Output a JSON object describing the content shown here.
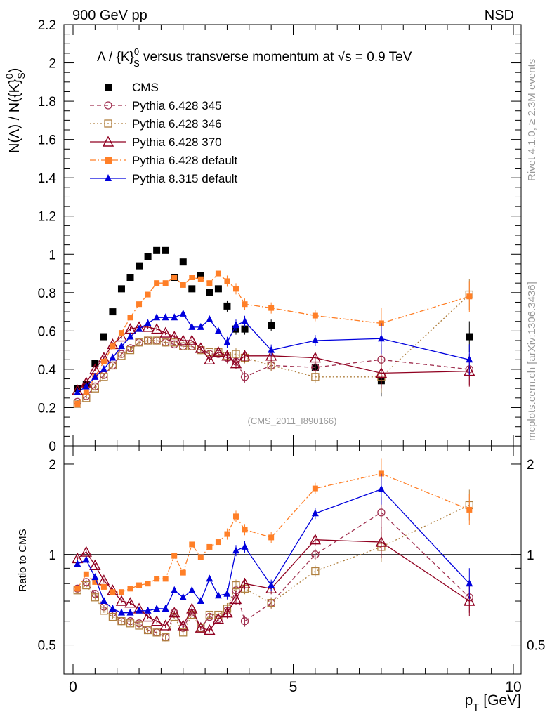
{
  "header": {
    "left": "900 GeV pp",
    "right": "NSD"
  },
  "side_labels": {
    "rivet": "Rivet 4.1.0, ≥ 2.3M events",
    "mcplots": "mcplots.cern.ch [arXiv:1306.3436]"
  },
  "chart_data": {
    "type": "scatter",
    "title": "Λ / {K}S0 versus transverse momentum at √s = 0.9 TeV",
    "title_parts": {
      "lead": "Λ / {K}",
      "sup": "0",
      "sub": "S",
      "mid": " versus transverse momentum at ",
      "sqrt": "√s",
      "tail": " = 0.9 TeV"
    },
    "ylabel": "N(Λ)  /  N({K}S0)",
    "ylabel_parts": {
      "lead": "N(Λ)  /  N({K}",
      "sup": "0",
      "sub": "S",
      "tail": ")"
    },
    "xlabel": "pT [GeV]",
    "xlabel_parts": {
      "main": "p",
      "sub": "T",
      "tail": " [GeV]"
    },
    "ratio_ylabel": "Ratio to CMS",
    "watermark": "(CMS_2011_I890166)",
    "xlim": [
      0,
      10
    ],
    "ylim": [
      0,
      2.2
    ],
    "ratio_ylim": [
      0.4,
      2.3
    ],
    "x_ticks": [
      "0",
      "5",
      "10"
    ],
    "y_ticks": [
      "0",
      "0.2",
      "0.4",
      "0.6",
      "0.8",
      "1",
      "1.2",
      "1.4",
      "1.6",
      "1.8",
      "2",
      "2.2"
    ],
    "ratio_ticks": [
      "0.5",
      "1",
      "2"
    ],
    "legend": [
      "CMS",
      "Pythia 6.428 345",
      "Pythia 6.428 346",
      "Pythia 6.428 370",
      "Pythia 6.428 default",
      "Pythia 8.315 default"
    ],
    "x": [
      0.1,
      0.3,
      0.5,
      0.7,
      0.9,
      1.1,
      1.3,
      1.5,
      1.7,
      1.9,
      2.1,
      2.3,
      2.5,
      2.7,
      2.9,
      3.1,
      3.3,
      3.5,
      3.7,
      3.9,
      4.5,
      5.5,
      7.0,
      9.0
    ],
    "series": [
      {
        "name": "CMS",
        "color": "#000000",
        "marker": "square-filled",
        "line": "none",
        "values": [
          0.3,
          0.32,
          0.43,
          0.57,
          0.7,
          0.82,
          0.88,
          0.94,
          0.99,
          1.02,
          1.02,
          0.88,
          0.96,
          0.82,
          0.89,
          0.8,
          0.82,
          0.73,
          0.61,
          0.61,
          0.63,
          0.41,
          0.34,
          0.57
        ],
        "ratio": [
          1,
          1,
          1,
          1,
          1,
          1,
          1,
          1,
          1,
          1,
          1,
          1,
          1,
          1,
          1,
          1,
          1,
          1,
          1,
          1,
          1,
          1,
          1,
          1
        ]
      },
      {
        "name": "Pythia 6.428 345",
        "color": "#a03050",
        "marker": "circle-open",
        "line": "dashed",
        "values": [
          0.23,
          0.26,
          0.31,
          0.37,
          0.42,
          0.48,
          0.51,
          0.54,
          0.55,
          0.55,
          0.54,
          0.53,
          0.52,
          0.52,
          0.5,
          0.48,
          0.48,
          0.46,
          0.44,
          0.36,
          0.42,
          0.41,
          0.45,
          0.4
        ],
        "ratio": [
          0.77,
          0.81,
          0.74,
          0.67,
          0.64,
          0.6,
          0.6,
          0.59,
          0.56,
          0.55,
          0.53,
          0.64,
          0.57,
          0.64,
          0.57,
          0.62,
          0.61,
          0.65,
          0.76,
          0.6,
          0.69,
          1.0,
          1.38,
          0.72
        ]
      },
      {
        "name": "Pythia 6.428 346",
        "color": "#b08040",
        "marker": "square-open",
        "line": "dotted",
        "values": [
          0.22,
          0.25,
          0.3,
          0.36,
          0.42,
          0.47,
          0.5,
          0.54,
          0.55,
          0.55,
          0.54,
          0.54,
          0.52,
          0.52,
          0.5,
          0.49,
          0.49,
          0.47,
          0.48,
          0.46,
          0.42,
          0.36,
          0.36,
          0.79
        ],
        "ratio": [
          0.76,
          0.79,
          0.72,
          0.65,
          0.62,
          0.6,
          0.59,
          0.58,
          0.56,
          0.55,
          0.53,
          0.62,
          0.55,
          0.63,
          0.57,
          0.63,
          0.63,
          0.66,
          0.79,
          0.77,
          0.69,
          0.88,
          1.06,
          1.46
        ]
      },
      {
        "name": "Pythia 6.428 370",
        "color": "#900020",
        "marker": "triangle-open",
        "line": "solid",
        "values": [
          0.29,
          0.33,
          0.4,
          0.46,
          0.53,
          0.57,
          0.61,
          0.62,
          0.62,
          0.61,
          0.59,
          0.57,
          0.55,
          0.55,
          0.51,
          0.45,
          0.49,
          0.47,
          0.43,
          0.47,
          0.47,
          0.46,
          0.38,
          0.39
        ],
        "ratio": [
          0.97,
          1.02,
          0.92,
          0.82,
          0.76,
          0.7,
          0.69,
          0.66,
          0.62,
          0.6,
          0.58,
          0.64,
          0.58,
          0.66,
          0.57,
          0.56,
          0.61,
          0.64,
          0.71,
          0.8,
          0.77,
          1.12,
          1.1,
          0.7
        ]
      },
      {
        "name": "Pythia 6.428 default",
        "color": "#ff7f27",
        "marker": "square-filled",
        "line": "dashdot",
        "values": [
          0.22,
          0.28,
          0.36,
          0.44,
          0.52,
          0.59,
          0.67,
          0.74,
          0.79,
          0.85,
          0.85,
          0.88,
          0.84,
          0.88,
          0.87,
          0.85,
          0.9,
          0.86,
          0.82,
          0.74,
          0.72,
          0.68,
          0.64,
          0.78
        ],
        "ratio": [
          0.77,
          0.86,
          0.81,
          0.78,
          0.75,
          0.75,
          0.77,
          0.79,
          0.8,
          0.83,
          0.83,
          0.99,
          0.87,
          1.08,
          0.98,
          1.06,
          1.1,
          1.17,
          1.34,
          1.21,
          1.14,
          1.66,
          1.86,
          1.41
        ]
      },
      {
        "name": "Pythia 8.315 default",
        "color": "#0000dd",
        "marker": "triangle-filled",
        "line": "solid",
        "values": [
          0.28,
          0.31,
          0.36,
          0.4,
          0.46,
          0.52,
          0.57,
          0.61,
          0.64,
          0.67,
          0.67,
          0.67,
          0.69,
          0.62,
          0.62,
          0.66,
          0.6,
          0.54,
          0.63,
          0.65,
          0.5,
          0.55,
          0.56,
          0.45
        ],
        "ratio": [
          0.93,
          0.96,
          0.84,
          0.7,
          0.66,
          0.64,
          0.64,
          0.65,
          0.65,
          0.66,
          0.66,
          0.76,
          0.72,
          0.76,
          0.7,
          0.83,
          0.73,
          0.74,
          1.03,
          1.06,
          0.79,
          1.37,
          1.65,
          0.8
        ]
      }
    ]
  }
}
